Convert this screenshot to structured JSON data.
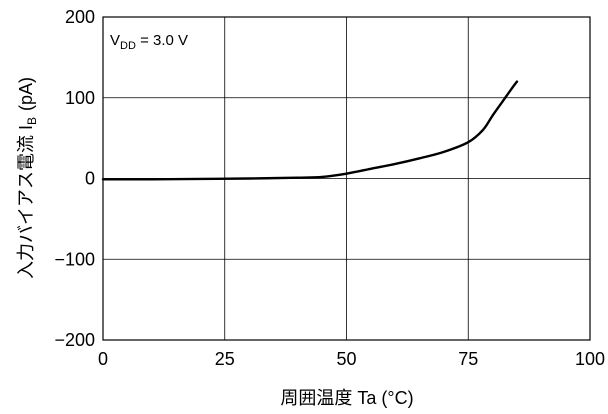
{
  "chart_data": {
    "type": "line",
    "xlabel": "周囲温度 Ta (°C)",
    "ylabel_main": "入力バイアス電流 I",
    "ylabel_sub": "IB",
    "ylabel_unit": "(pA)",
    "annotation": {
      "prefix": "V",
      "sub": "DD",
      "suffix": " = 3.0 V"
    },
    "xlim": [
      0,
      100
    ],
    "ylim": [
      -200,
      200
    ],
    "x_ticks": [
      0,
      25,
      50,
      75,
      100
    ],
    "y_ticks": [
      200,
      100,
      0,
      -100,
      -200
    ],
    "x_tick_labels": [
      "0",
      "25",
      "50",
      "75",
      "100"
    ],
    "y_tick_labels": [
      "200",
      "100",
      "0",
      "−100",
      "−200"
    ],
    "grid": true,
    "line_color": "#000000",
    "series": [
      {
        "x": [
          0,
          10,
          20,
          30,
          40,
          45,
          50,
          55,
          60,
          65,
          70,
          75,
          78,
          80,
          82,
          84,
          85
        ],
        "y": [
          -1,
          -1,
          -0.5,
          0,
          1,
          2,
          6,
          12,
          18,
          25,
          33,
          45,
          60,
          78,
          95,
          112,
          120
        ]
      }
    ]
  }
}
